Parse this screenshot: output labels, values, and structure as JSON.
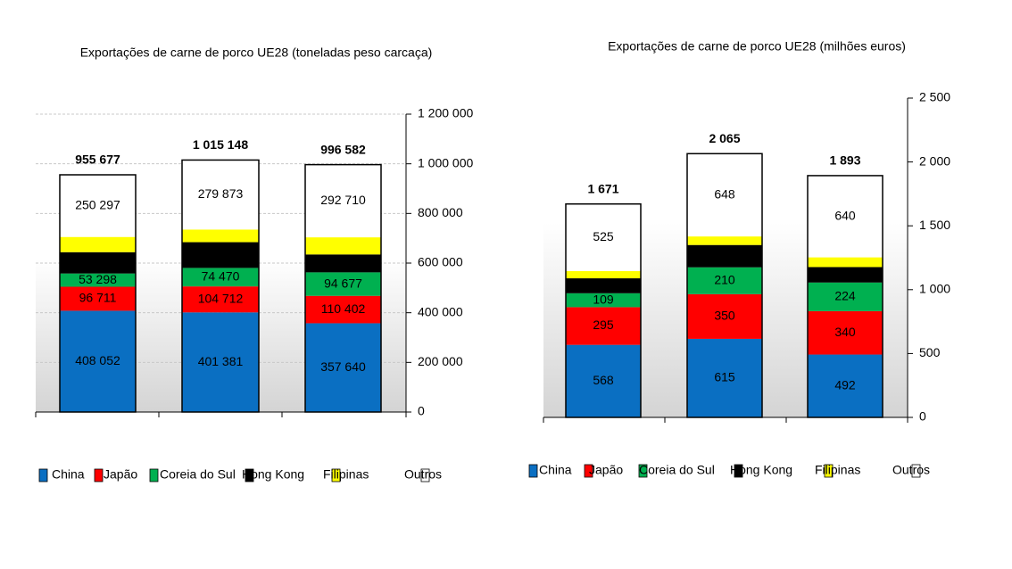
{
  "chart_data": [
    {
      "type": "bar",
      "stacked": true,
      "title": "Exportações de carne de porco UE28 (toneladas peso carcaça)",
      "categories": [
        null,
        null,
        null
      ],
      "series": [
        {
          "name": "China",
          "color": "#0a6fc2",
          "values": [
            408052,
            401381,
            357640
          ],
          "value_labels": [
            "408 052",
            "401 381",
            "357 640"
          ]
        },
        {
          "name": "Japão",
          "color": "#ff0000",
          "values": [
            96711,
            104712,
            110402
          ],
          "value_labels": [
            "96 711",
            "104 712",
            "110 402"
          ]
        },
        {
          "name": "Coreia do Sul",
          "color": "#00b050",
          "values": [
            53298,
            74470,
            94677
          ],
          "value_labels": [
            "53 298",
            "74 470",
            "94 677"
          ]
        },
        {
          "name": "Hong Kong",
          "color": "#000000",
          "values": [
            86000,
            103712,
            72153
          ],
          "show_labels": false
        },
        {
          "name": "Filipinas",
          "color": "#ffff00",
          "values": [
            61319,
            51000,
            69000
          ],
          "show_labels": false
        },
        {
          "name": "Outros",
          "color": "#ffffff",
          "values": [
            250297,
            279873,
            292710
          ],
          "value_labels": [
            "250 297",
            "279 873",
            "292 710"
          ]
        }
      ],
      "totals": [
        955677,
        1015148,
        996582
      ],
      "total_labels": [
        "955 677",
        "1 015 148",
        "996 582"
      ],
      "ylim": [
        0,
        1200000
      ],
      "yticks": [
        0,
        {
          "value": 200000,
          "label": "200 000"
        },
        {
          "value": 400000,
          "label": "400 000"
        },
        {
          "value": 600000,
          "label": "600 000"
        },
        {
          "value": 800000,
          "label": "800 000"
        },
        {
          "value": 1000000,
          "label": "1 000 000"
        },
        {
          "value": 1200000,
          "label": "1 200 000"
        }
      ],
      "grid": true
    },
    {
      "type": "bar",
      "stacked": true,
      "title": "Exportações de carne de porco UE28 (milhões euros)",
      "categories": [
        null,
        null,
        null
      ],
      "series": [
        {
          "name": "China",
          "color": "#0a6fc2",
          "values": [
            568,
            615,
            492
          ]
        },
        {
          "name": "Japão",
          "color": "#ff0000",
          "values": [
            295,
            350,
            340
          ]
        },
        {
          "name": "Coreia do Sul",
          "color": "#00b050",
          "values": [
            109,
            210,
            224
          ]
        },
        {
          "name": "Hong Kong",
          "color": "#000000",
          "values": [
            117,
            175,
            121
          ]
        },
        {
          "name": "Filipinas",
          "color": "#ffff00",
          "values": [
            57,
            67,
            76
          ],
          "show_labels": false
        },
        {
          "name": "Outros",
          "color": "#ffffff",
          "values": [
            525,
            648,
            640
          ]
        }
      ],
      "totals": [
        1671,
        2065,
        1893
      ],
      "total_labels": [
        "1 671",
        "2 065",
        "1 893"
      ],
      "ylim": [
        0,
        2500
      ],
      "yticks": [
        0,
        500,
        {
          "value": 1000,
          "label": "1 000"
        },
        {
          "value": 1500,
          "label": "1 500"
        },
        {
          "value": 2000,
          "label": "2 000"
        },
        {
          "value": 2500,
          "label": "2 500"
        }
      ],
      "grid": false
    }
  ]
}
